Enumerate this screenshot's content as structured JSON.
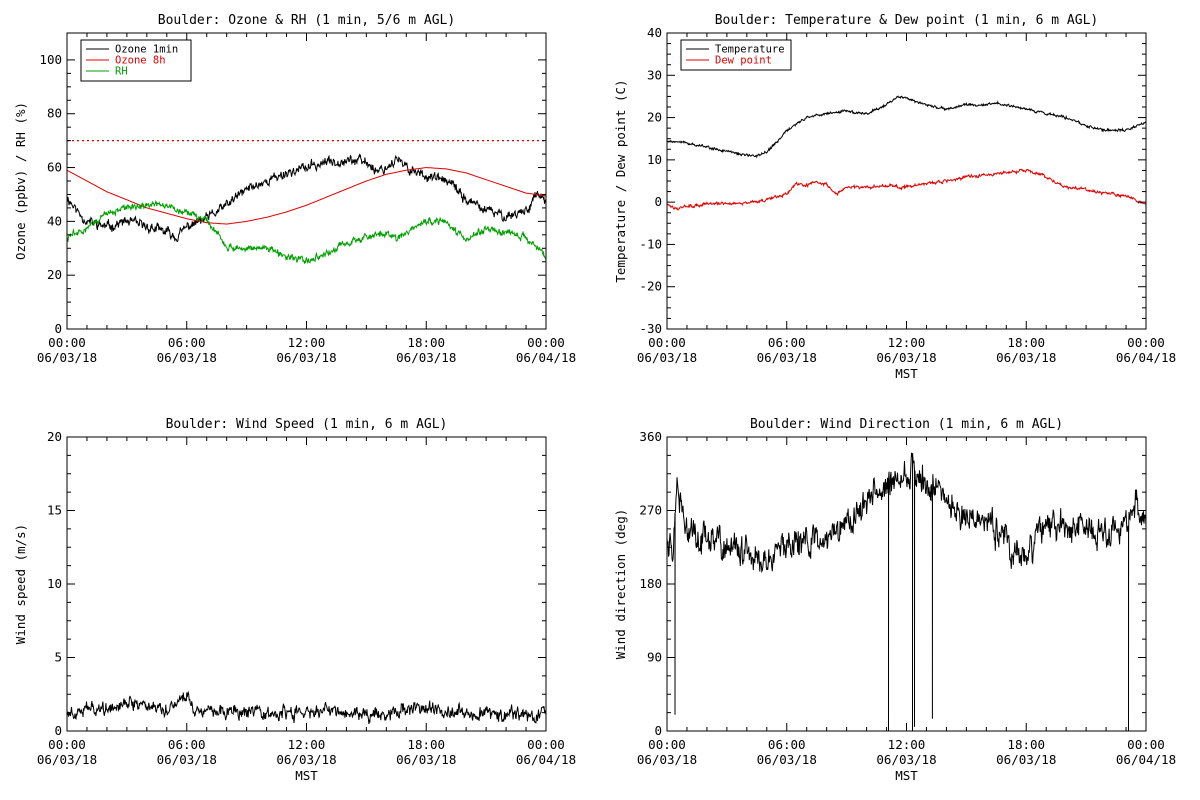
{
  "figure": {
    "background": "#ffffff",
    "colors": {
      "black": "#000000",
      "red": "#e00000",
      "green": "#00a000"
    }
  },
  "chart_data": [
    {
      "type": "line",
      "title": "Boulder: Ozone & RH (1 min, 5/6 m AGL)",
      "xlabel": "",
      "ylabel": "Ozone (ppbv) / RH (%)",
      "x_tick_labels": [
        [
          "00:00",
          "06/03/18"
        ],
        [
          "06:00",
          "06/03/18"
        ],
        [
          "12:00",
          "06/03/18"
        ],
        [
          "18:00",
          "06/03/18"
        ],
        [
          "00:00",
          "06/04/18"
        ]
      ],
      "x_hours": [
        0,
        24
      ],
      "ylim": [
        0,
        110
      ],
      "y_ticks": [
        0,
        20,
        40,
        60,
        80,
        100
      ],
      "legend": {
        "position": "top-left",
        "entries": [
          "Ozone 1min",
          "Ozone 8h",
          "RH"
        ]
      },
      "reference_line": {
        "y": 70,
        "color": "red",
        "style": "dotted"
      },
      "series": [
        {
          "name": "Ozone 1min",
          "color": "black",
          "noise": 1.8,
          "points": [
            [
              0,
              49
            ],
            [
              0.5,
              44
            ],
            [
              1,
              40
            ],
            [
              2,
              38
            ],
            [
              3,
              40
            ],
            [
              4,
              38
            ],
            [
              5,
              36
            ],
            [
              5.5,
              34
            ],
            [
              6,
              38
            ],
            [
              7,
              41
            ],
            [
              8,
              46
            ],
            [
              9,
              52
            ],
            [
              10,
              55
            ],
            [
              11,
              58
            ],
            [
              12,
              60
            ],
            [
              13,
              62
            ],
            [
              14,
              63
            ],
            [
              15,
              62
            ],
            [
              15.5,
              59
            ],
            [
              16,
              60
            ],
            [
              16.5,
              63
            ],
            [
              17,
              60
            ],
            [
              18,
              57
            ],
            [
              19,
              55
            ],
            [
              19.5,
              52
            ],
            [
              20,
              48
            ],
            [
              21,
              44
            ],
            [
              22,
              42
            ],
            [
              23,
              44
            ],
            [
              23.5,
              50
            ],
            [
              24,
              48
            ]
          ]
        },
        {
          "name": "Ozone 8h",
          "color": "red",
          "noise": 0,
          "points": [
            [
              0,
              59
            ],
            [
              1,
              55
            ],
            [
              2,
              51
            ],
            [
              3,
              48
            ],
            [
              4,
              45
            ],
            [
              5,
              43
            ],
            [
              6,
              41
            ],
            [
              7,
              39.5
            ],
            [
              8,
              39
            ],
            [
              9,
              40
            ],
            [
              10,
              41.5
            ],
            [
              11,
              43.5
            ],
            [
              12,
              46
            ],
            [
              13,
              49
            ],
            [
              14,
              52
            ],
            [
              15,
              55
            ],
            [
              16,
              57.5
            ],
            [
              17,
              59
            ],
            [
              18,
              60
            ],
            [
              19,
              59.5
            ],
            [
              20,
              58
            ],
            [
              21,
              55.5
            ],
            [
              22,
              53
            ],
            [
              23,
              50.5
            ],
            [
              24,
              49.5
            ]
          ]
        },
        {
          "name": "RH",
          "color": "green",
          "noise": 1.2,
          "points": [
            [
              0,
              34
            ],
            [
              1,
              38
            ],
            [
              2,
              43
            ],
            [
              3,
              45
            ],
            [
              4,
              46
            ],
            [
              5,
              46
            ],
            [
              6,
              43
            ],
            [
              7,
              40
            ],
            [
              7.5,
              36
            ],
            [
              8,
              30
            ],
            [
              9,
              30
            ],
            [
              10,
              30
            ],
            [
              11,
              27
            ],
            [
              12,
              25
            ],
            [
              13,
              28
            ],
            [
              14,
              32
            ],
            [
              15,
              34
            ],
            [
              16,
              36
            ],
            [
              16.5,
              33
            ],
            [
              17,
              36
            ],
            [
              18,
              40
            ],
            [
              19,
              40
            ],
            [
              19.5,
              36
            ],
            [
              20,
              34
            ],
            [
              21,
              37
            ],
            [
              22,
              36
            ],
            [
              23,
              34
            ],
            [
              24,
              27
            ]
          ]
        }
      ]
    },
    {
      "type": "line",
      "title": "Boulder: Temperature & Dew point (1 min, 6 m AGL)",
      "xlabel": "MST",
      "ylabel": "Temperature / Dew point (C)",
      "x_tick_labels": [
        [
          "00:00",
          "06/03/18"
        ],
        [
          "06:00",
          "06/03/18"
        ],
        [
          "12:00",
          "06/03/18"
        ],
        [
          "18:00",
          "06/03/18"
        ],
        [
          "00:00",
          "06/04/18"
        ]
      ],
      "x_hours": [
        0,
        24
      ],
      "ylim": [
        -30,
        40
      ],
      "y_ticks": [
        -30,
        -20,
        -10,
        0,
        10,
        20,
        30,
        40
      ],
      "legend": {
        "position": "top-left",
        "entries": [
          "Temperature",
          "Dew point"
        ]
      },
      "series": [
        {
          "name": "Temperature",
          "color": "black",
          "noise": 0.3,
          "points": [
            [
              0,
              14.5
            ],
            [
              1,
              14
            ],
            [
              2,
              13
            ],
            [
              3,
              12
            ],
            [
              4,
              11
            ],
            [
              4.5,
              11
            ],
            [
              5,
              12
            ],
            [
              5.5,
              14
            ],
            [
              6,
              17
            ],
            [
              7,
              20
            ],
            [
              8,
              21
            ],
            [
              9,
              21.5
            ],
            [
              10,
              21
            ],
            [
              11,
              23
            ],
            [
              11.5,
              25
            ],
            [
              12,
              24.5
            ],
            [
              13,
              23
            ],
            [
              14,
              22
            ],
            [
              15,
              23
            ],
            [
              16,
              23
            ],
            [
              16.5,
              23.5
            ],
            [
              17,
              23
            ],
            [
              18,
              22
            ],
            [
              19,
              21
            ],
            [
              20,
              20
            ],
            [
              21,
              18
            ],
            [
              22,
              17
            ],
            [
              23,
              17
            ],
            [
              24,
              19
            ]
          ]
        },
        {
          "name": "Dew point",
          "color": "red",
          "noise": 0.35,
          "points": [
            [
              0,
              -0.5
            ],
            [
              0.5,
              -1.5
            ],
            [
              1,
              -1
            ],
            [
              2,
              -0.5
            ],
            [
              3,
              -0.2
            ],
            [
              4,
              -0.2
            ],
            [
              5,
              0.5
            ],
            [
              6,
              2
            ],
            [
              6.5,
              4.5
            ],
            [
              7,
              4
            ],
            [
              7.5,
              5
            ],
            [
              8,
              4
            ],
            [
              8.5,
              2
            ],
            [
              9,
              3.5
            ],
            [
              10,
              3.5
            ],
            [
              11,
              4
            ],
            [
              12,
              3.5
            ],
            [
              13,
              4.5
            ],
            [
              14,
              5
            ],
            [
              15,
              6
            ],
            [
              16,
              6.5
            ],
            [
              17,
              7
            ],
            [
              18,
              7.5
            ],
            [
              19,
              6
            ],
            [
              20,
              3.5
            ],
            [
              21,
              3
            ],
            [
              22,
              2
            ],
            [
              23,
              1.5
            ],
            [
              24,
              -0.5
            ]
          ]
        }
      ]
    },
    {
      "type": "line",
      "title": "Boulder: Wind Speed (1 min, 6 m AGL)",
      "xlabel": "MST",
      "ylabel": "Wind speed (m/s)",
      "x_tick_labels": [
        [
          "00:00",
          "06/03/18"
        ],
        [
          "06:00",
          "06/03/18"
        ],
        [
          "12:00",
          "06/03/18"
        ],
        [
          "18:00",
          "06/03/18"
        ],
        [
          "00:00",
          "06/04/18"
        ]
      ],
      "x_hours": [
        0,
        24
      ],
      "ylim": [
        0,
        20
      ],
      "y_ticks": [
        0,
        5,
        10,
        15,
        20
      ],
      "series": [
        {
          "name": "",
          "color": "black",
          "noise": 0.45,
          "points": [
            [
              0,
              1.3
            ],
            [
              1,
              1.5
            ],
            [
              2,
              1.6
            ],
            [
              3,
              2
            ],
            [
              4,
              1.8
            ],
            [
              5,
              1.5
            ],
            [
              5.5,
              2
            ],
            [
              6,
              2.5
            ],
            [
              6.5,
              1.3
            ],
            [
              7,
              1.6
            ],
            [
              8,
              1.3
            ],
            [
              9,
              1.2
            ],
            [
              10,
              1.1
            ],
            [
              11,
              1.2
            ],
            [
              12,
              1.2
            ],
            [
              13,
              1.4
            ],
            [
              14,
              1.3
            ],
            [
              15,
              1.1
            ],
            [
              16,
              1.2
            ],
            [
              17,
              1.6
            ],
            [
              18,
              1.5
            ],
            [
              19,
              1.4
            ],
            [
              20,
              1.3
            ],
            [
              21,
              1.2
            ],
            [
              22,
              1.2
            ],
            [
              23,
              1.1
            ],
            [
              24,
              1.0
            ]
          ]
        }
      ]
    },
    {
      "type": "line",
      "title": "Boulder: Wind Direction (1 min, 6 m AGL)",
      "xlabel": "MST",
      "ylabel": "Wind direction (deg)",
      "x_tick_labels": [
        [
          "00:00",
          "06/03/18"
        ],
        [
          "06:00",
          "06/03/18"
        ],
        [
          "12:00",
          "06/03/18"
        ],
        [
          "18:00",
          "06/03/18"
        ],
        [
          "00:00",
          "06/04/18"
        ]
      ],
      "x_hours": [
        0,
        24
      ],
      "ylim": [
        0,
        360
      ],
      "y_ticks": [
        0,
        90,
        180,
        270,
        360
      ],
      "series": [
        {
          "name": "",
          "color": "black",
          "noise": 18,
          "points": [
            [
              0,
              240
            ],
            [
              0.3,
              210
            ],
            [
              0.5,
              300
            ],
            [
              1,
              240
            ],
            [
              2,
              235
            ],
            [
              3,
              225
            ],
            [
              4,
              215
            ],
            [
              5,
              205
            ],
            [
              6,
              225
            ],
            [
              7,
              235
            ],
            [
              8,
              240
            ],
            [
              9,
              250
            ],
            [
              10,
              280
            ],
            [
              11,
              300
            ],
            [
              12,
              310
            ],
            [
              12.5,
              320
            ],
            [
              13,
              300
            ],
            [
              14,
              280
            ],
            [
              15,
              265
            ],
            [
              16,
              255
            ],
            [
              17,
              240
            ],
            [
              17.5,
              205
            ],
            [
              18,
              220
            ],
            [
              19,
              250
            ],
            [
              20,
              255
            ],
            [
              21,
              245
            ],
            [
              22,
              240
            ],
            [
              23,
              250
            ],
            [
              23.5,
              280
            ],
            [
              24,
              255
            ]
          ],
          "spikes": [
            [
              0.4,
              20
            ],
            [
              11.1,
              0
            ],
            [
              12.3,
              0
            ],
            [
              12.4,
              5
            ],
            [
              13.3,
              15
            ],
            [
              23.1,
              0
            ]
          ]
        }
      ]
    }
  ]
}
